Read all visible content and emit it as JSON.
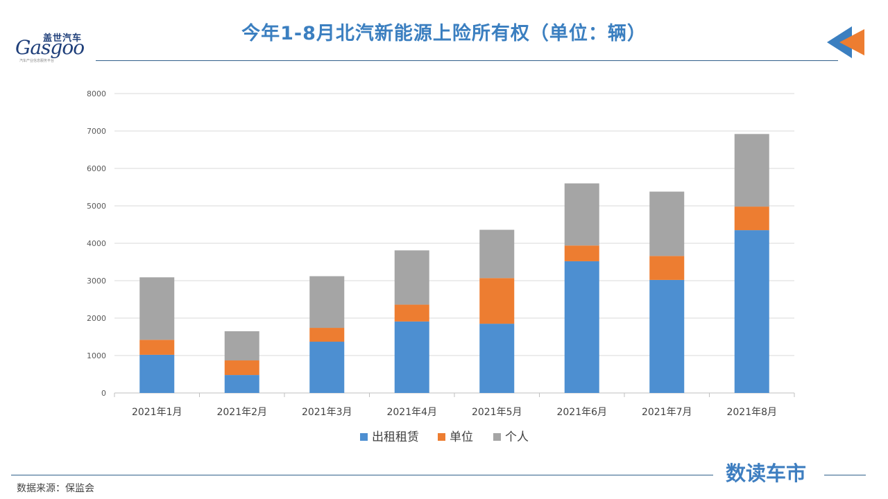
{
  "header": {
    "title": "今年1-8月北汽新能源上险所有权（单位：辆）",
    "logo_cn": "盖世汽车",
    "logo_en": "Gasgoo",
    "logo_tagline": "汽车产业信息服务平台"
  },
  "footer": {
    "source": "数据来源：保监会",
    "brand": "数读车市"
  },
  "chart_data": {
    "type": "bar",
    "stacked": true,
    "title": "今年1-8月北汽新能源上险所有权（单位：辆）",
    "categories": [
      "2021年1月",
      "2021年2月",
      "2021年3月",
      "2021年4月",
      "2021年5月",
      "2021年6月",
      "2021年7月",
      "2021年8月"
    ],
    "series": [
      {
        "name": "出租租赁",
        "color": "#4d8fd1",
        "values": [
          1020,
          480,
          1370,
          1910,
          1850,
          3520,
          3020,
          4350
        ]
      },
      {
        "name": "单位",
        "color": "#ed7d31",
        "values": [
          400,
          390,
          370,
          450,
          1220,
          420,
          640,
          630
        ]
      },
      {
        "name": "个人",
        "color": "#a5a5a5",
        "values": [
          1670,
          780,
          1380,
          1450,
          1290,
          1660,
          1720,
          1940
        ]
      }
    ],
    "yticks": [
      0,
      1000,
      2000,
      3000,
      4000,
      5000,
      6000,
      7000,
      8000
    ],
    "ylim": [
      0,
      8000
    ],
    "grid": true,
    "legend_position": "bottom",
    "xlabel": "",
    "ylabel": ""
  }
}
